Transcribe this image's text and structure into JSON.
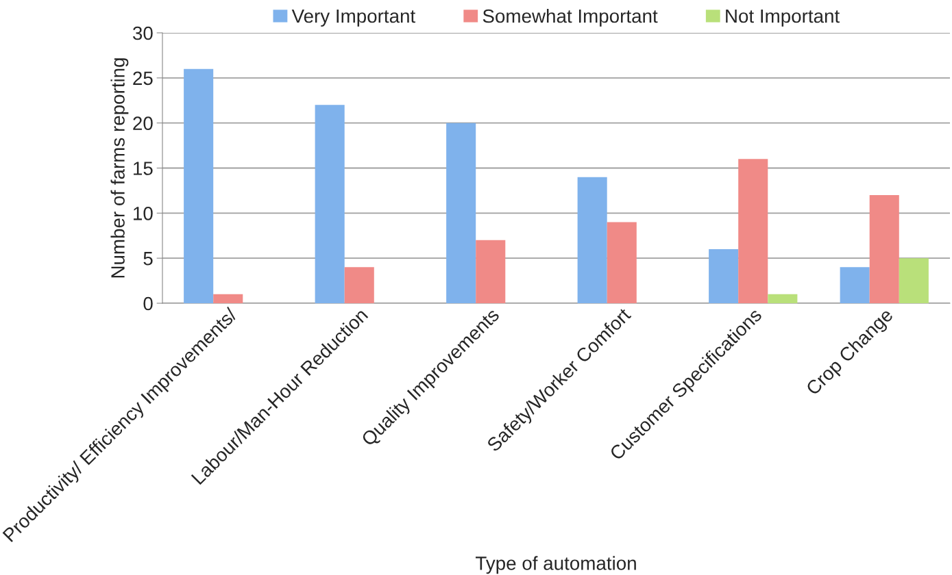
{
  "chart_data": {
    "type": "bar",
    "xlabel": "Type of automation",
    "ylabel": "Number of farms reporting",
    "categories": [
      "Productivity/ Efficiency Improvements/",
      "Labour/Man-Hour Reduction",
      "Quality Improvements",
      "Safety/Worker Comfort",
      "Customer Specifications",
      "Crop Change"
    ],
    "series": [
      {
        "name": "Very Important",
        "color": "#7fb2ec",
        "values": [
          26,
          22,
          20,
          14,
          6,
          4
        ]
      },
      {
        "name": "Somewhat Important",
        "color": "#f08a87",
        "values": [
          1,
          4,
          7,
          9,
          16,
          12
        ]
      },
      {
        "name": "Not Important",
        "color": "#b9e07a",
        "values": [
          null,
          null,
          null,
          null,
          1,
          5
        ]
      }
    ],
    "ylim": [
      0,
      30
    ],
    "yticks": [
      0,
      5,
      10,
      15,
      20,
      25,
      30
    ],
    "grid": "y",
    "legend": "top"
  }
}
